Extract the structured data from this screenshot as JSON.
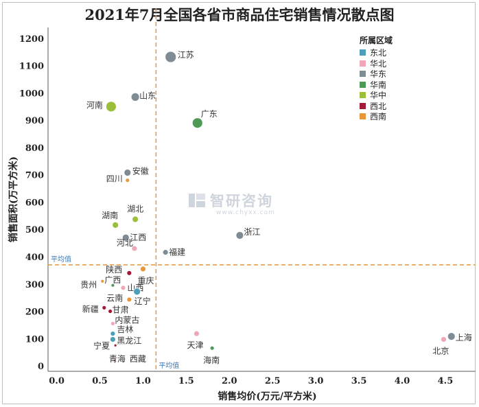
{
  "chart_data": {
    "type": "scatter",
    "title": "2021年7月全国各省市商品住宅销售情况散点图",
    "xlabel": "销售均价(万元/平方米)",
    "ylabel": "销售面积(万平方米)",
    "xlim": [
      -0.1,
      4.85
    ],
    "ylim": [
      -20,
      1240
    ],
    "x_ticks": [
      0,
      0.5,
      1,
      1.5,
      2,
      2.5,
      3,
      3.5,
      4,
      4.5
    ],
    "x_tick_labels": [
      "0.0",
      "0.5",
      "1.0",
      "1.5",
      "2.0",
      "2.5",
      "3.0",
      "3.5",
      "4.0",
      "4.5"
    ],
    "y_ticks": [
      0,
      100,
      200,
      300,
      400,
      500,
      600,
      700,
      800,
      900,
      1000,
      1100,
      1200
    ],
    "y_tick_labels": [
      "0",
      "100",
      "200",
      "300",
      "400",
      "500",
      "600",
      "700",
      "800",
      "900",
      "1000",
      "1100",
      "1200"
    ],
    "mean_x": 1.15,
    "mean_y": 370,
    "mean_label": "平均值",
    "legend_title": "所属区域",
    "legend_position": "top-right",
    "grid": false,
    "regions": [
      {
        "name": "东北",
        "color": "#4b9fb8"
      },
      {
        "name": "华北",
        "color": "#f2a7b8"
      },
      {
        "name": "华东",
        "color": "#7f8c94"
      },
      {
        "name": "华南",
        "color": "#4c9a55"
      },
      {
        "name": "华中",
        "color": "#9bbf3a"
      },
      {
        "name": "西北",
        "color": "#a31a36"
      },
      {
        "name": "西南",
        "color": "#e8963a"
      }
    ],
    "points": [
      {
        "label": "江苏",
        "region": "华东",
        "x": 1.32,
        "y": 1132,
        "r": 8,
        "lx": 10,
        "ly": -3,
        "anchor": "start"
      },
      {
        "label": "山东",
        "region": "华东",
        "x": 0.91,
        "y": 985,
        "r": 6,
        "lx": 6,
        "ly": -2,
        "anchor": "start"
      },
      {
        "label": "河南",
        "region": "华中",
        "x": 0.63,
        "y": 950,
        "r": 7.5,
        "lx": -12,
        "ly": -2,
        "anchor": "end"
      },
      {
        "label": "广东",
        "region": "华南",
        "x": 1.63,
        "y": 890,
        "r": 7.5,
        "lx": 5,
        "ly": -13,
        "anchor": "start"
      },
      {
        "label": "安徽",
        "region": "华东",
        "x": 0.82,
        "y": 708,
        "r": 5,
        "lx": 7,
        "ly": -2,
        "anchor": "start"
      },
      {
        "label": "四川",
        "region": "西南",
        "x": 0.82,
        "y": 680,
        "r": 3,
        "lx": -7,
        "ly": -2,
        "anchor": "end"
      },
      {
        "label": "湖北",
        "region": "华中",
        "x": 0.91,
        "y": 537,
        "r": 4.5,
        "lx": -12,
        "ly": -15,
        "anchor": "start"
      },
      {
        "label": "湖南",
        "region": "华中",
        "x": 0.68,
        "y": 516,
        "r": 4.5,
        "lx": -20,
        "ly": -14,
        "anchor": "start"
      },
      {
        "label": "江西",
        "region": "华东",
        "x": 0.8,
        "y": 470,
        "r": 5,
        "lx": 6,
        "ly": 0,
        "anchor": "start"
      },
      {
        "label": "河北",
        "region": "华北",
        "x": 0.9,
        "y": 430,
        "r": 4,
        "lx": -26,
        "ly": -8,
        "anchor": "start"
      },
      {
        "label": "浙江",
        "region": "华东",
        "x": 2.12,
        "y": 478,
        "r": 5.5,
        "lx": 6,
        "ly": -5,
        "anchor": "start"
      },
      {
        "label": "福建",
        "region": "华东",
        "x": 1.26,
        "y": 416,
        "r": 4,
        "lx": 5,
        "ly": 0,
        "anchor": "start"
      },
      {
        "label": "陕西",
        "region": "西北",
        "x": 0.84,
        "y": 340,
        "r": 3.5,
        "lx": -34,
        "ly": -5,
        "anchor": "start"
      },
      {
        "label": "重庆",
        "region": "西南",
        "x": 1.0,
        "y": 355,
        "r": 4,
        "lx": -8,
        "ly": 17,
        "anchor": "start"
      },
      {
        "label": "贵州",
        "region": "西南",
        "x": 0.53,
        "y": 310,
        "r": 2.5,
        "lx": -8,
        "ly": 5,
        "anchor": "end"
      },
      {
        "label": "广西",
        "region": "华南",
        "x": 0.65,
        "y": 295,
        "r": 2.5,
        "lx": -12,
        "ly": -8,
        "anchor": "start"
      },
      {
        "label": "山西",
        "region": "华北",
        "x": 0.77,
        "y": 286,
        "r": 3.5,
        "lx": 6,
        "ly": 0,
        "anchor": "start"
      },
      {
        "label": "辽宁",
        "region": "东北",
        "x": 0.93,
        "y": 272,
        "r": 5,
        "lx": -4,
        "ly": 14,
        "anchor": "start"
      },
      {
        "label": "云南",
        "region": "西南",
        "x": 0.84,
        "y": 243,
        "r": 3.5,
        "lx": -33,
        "ly": -2,
        "anchor": "start"
      },
      {
        "label": "新疆",
        "region": "西北",
        "x": 0.55,
        "y": 213,
        "r": 3,
        "lx": -8,
        "ly": 2,
        "anchor": "end"
      },
      {
        "label": "甘肃",
        "region": "西北",
        "x": 0.62,
        "y": 200,
        "r": 3,
        "lx": 3,
        "ly": -2,
        "anchor": "start"
      },
      {
        "label": "内蒙古",
        "region": "华北",
        "x": 0.65,
        "y": 155,
        "r": 3,
        "lx": 3,
        "ly": -5,
        "anchor": "start"
      },
      {
        "label": "吉林",
        "region": "东北",
        "x": 0.65,
        "y": 118,
        "r": 3.5,
        "lx": 6,
        "ly": -6,
        "anchor": "start"
      },
      {
        "label": "黑龙江",
        "region": "东北",
        "x": 0.65,
        "y": 97,
        "r": 4,
        "lx": 6,
        "ly": 2,
        "anchor": "start"
      },
      {
        "label": "宁夏",
        "region": "西北",
        "x": 0.68,
        "y": 75,
        "r": 2,
        "lx": -32,
        "ly": 1,
        "anchor": "start"
      },
      {
        "label": "青海",
        "region": "西北",
        "x": 0.67,
        "y": 20,
        "r": 1.5,
        "lx": -8,
        "ly": -2,
        "anchor": "start"
      },
      {
        "label": "西藏",
        "region": "西南",
        "x": 0.86,
        "y": 20,
        "r": 1.5,
        "lx": -2,
        "ly": -2,
        "anchor": "start"
      },
      {
        "label": "天津",
        "region": "华北",
        "x": 1.62,
        "y": 118,
        "r": 4,
        "lx": -14,
        "ly": 17,
        "anchor": "start"
      },
      {
        "label": "海南",
        "region": "华南",
        "x": 1.8,
        "y": 65,
        "r": 3,
        "lx": -13,
        "ly": 18,
        "anchor": "start"
      },
      {
        "label": "上海",
        "region": "华东",
        "x": 4.57,
        "y": 108,
        "r": 5.5,
        "lx": 6,
        "ly": 2,
        "anchor": "start"
      },
      {
        "label": "北京",
        "region": "华北",
        "x": 4.48,
        "y": 97,
        "r": 4,
        "lx": -16,
        "ly": 17,
        "anchor": "start"
      }
    ]
  },
  "watermark": {
    "text": "智研咨询",
    "url": "www.chyxx.com"
  }
}
